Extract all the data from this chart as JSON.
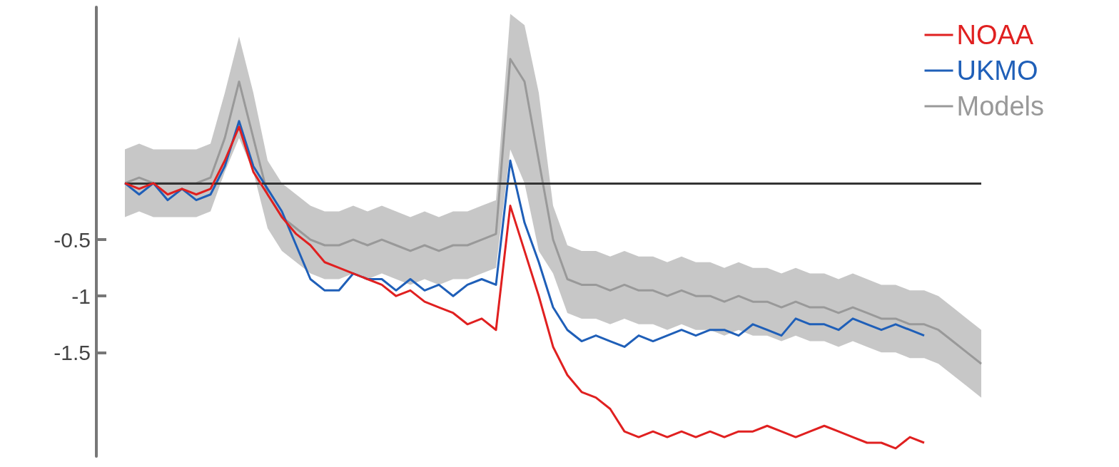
{
  "chart_data": {
    "type": "line",
    "categories": [
      null,
      null,
      null,
      null,
      null,
      null,
      null,
      null,
      null,
      null,
      null,
      null,
      null,
      null,
      null,
      null,
      null,
      null,
      null,
      null,
      null,
      null,
      null,
      null,
      null,
      null,
      null,
      null,
      null,
      null,
      null,
      null,
      null,
      null,
      null,
      null,
      null,
      null,
      null,
      null,
      null,
      null,
      null,
      null,
      null,
      null,
      null,
      null,
      null,
      null,
      null,
      null,
      null,
      null,
      null,
      null,
      null,
      null,
      null,
      null,
      null
    ],
    "series": [
      {
        "name": "NOAA",
        "color": "#e02020",
        "values": [
          0,
          -0.05,
          0,
          -0.1,
          -0.05,
          -0.1,
          -0.05,
          0.2,
          0.5,
          0.1,
          -0.1,
          -0.3,
          -0.45,
          -0.55,
          -0.7,
          -0.75,
          -0.8,
          -0.85,
          -0.9,
          -1.0,
          -0.95,
          -1.05,
          -1.1,
          -1.15,
          -1.25,
          -1.2,
          -1.3,
          -0.2,
          -0.6,
          -1.0,
          -1.45,
          -1.7,
          -1.85,
          -1.9,
          -2.0,
          -2.2,
          -2.25,
          -2.2,
          -2.25,
          -2.2,
          -2.25,
          -2.2,
          -2.25,
          -2.2,
          -2.2,
          -2.15,
          -2.2,
          -2.25,
          -2.2,
          -2.15,
          -2.2,
          -2.25,
          -2.3,
          -2.3,
          -2.35,
          -2.25,
          -2.3,
          null,
          null,
          null,
          null
        ]
      },
      {
        "name": "UKMO",
        "color": "#1f5fb8",
        "values": [
          0,
          -0.1,
          0,
          -0.15,
          -0.05,
          -0.15,
          -0.1,
          0.15,
          0.55,
          0.15,
          -0.05,
          -0.25,
          -0.55,
          -0.85,
          -0.95,
          -0.95,
          -0.8,
          -0.85,
          -0.85,
          -0.95,
          -0.85,
          -0.95,
          -0.9,
          -1.0,
          -0.9,
          -0.85,
          -0.9,
          0.2,
          -0.35,
          -0.7,
          -1.1,
          -1.3,
          -1.4,
          -1.35,
          -1.4,
          -1.45,
          -1.35,
          -1.4,
          -1.35,
          -1.3,
          -1.35,
          -1.3,
          -1.3,
          -1.35,
          -1.25,
          -1.3,
          -1.35,
          -1.2,
          -1.25,
          -1.25,
          -1.3,
          -1.2,
          -1.25,
          -1.3,
          -1.25,
          -1.3,
          -1.35,
          null,
          null,
          null,
          null
        ]
      },
      {
        "name": "Models",
        "color": "#999999",
        "values": [
          0,
          0.05,
          0,
          0,
          0,
          0,
          0.05,
          0.4,
          0.9,
          0.4,
          -0.1,
          -0.3,
          -0.4,
          -0.5,
          -0.55,
          -0.55,
          -0.5,
          -0.55,
          -0.5,
          -0.55,
          -0.6,
          -0.55,
          -0.6,
          -0.55,
          -0.55,
          -0.5,
          -0.45,
          1.1,
          0.9,
          0.2,
          -0.5,
          -0.85,
          -0.9,
          -0.9,
          -0.95,
          -0.9,
          -0.95,
          -0.95,
          -1.0,
          -0.95,
          -1.0,
          -1.0,
          -1.05,
          -1.0,
          -1.05,
          -1.05,
          -1.1,
          -1.05,
          -1.1,
          -1.1,
          -1.15,
          -1.1,
          -1.15,
          -1.2,
          -1.2,
          -1.25,
          -1.25,
          -1.3,
          -1.4,
          -1.5,
          -1.6
        ],
        "upper": [
          0.3,
          0.35,
          0.3,
          0.3,
          0.3,
          0.3,
          0.35,
          0.8,
          1.3,
          0.8,
          0.2,
          0,
          -0.1,
          -0.2,
          -0.25,
          -0.25,
          -0.2,
          -0.25,
          -0.2,
          -0.25,
          -0.3,
          -0.25,
          -0.3,
          -0.25,
          -0.25,
          -0.2,
          -0.15,
          1.5,
          1.4,
          0.8,
          -0.2,
          -0.55,
          -0.6,
          -0.6,
          -0.65,
          -0.6,
          -0.65,
          -0.65,
          -0.7,
          -0.65,
          -0.7,
          -0.7,
          -0.75,
          -0.7,
          -0.75,
          -0.75,
          -0.8,
          -0.75,
          -0.8,
          -0.8,
          -0.85,
          -0.8,
          -0.85,
          -0.9,
          -0.9,
          -0.95,
          -0.95,
          -1.0,
          -1.1,
          -1.2,
          -1.3
        ],
        "lower": [
          -0.3,
          -0.25,
          -0.3,
          -0.3,
          -0.3,
          -0.3,
          -0.25,
          0.1,
          0.4,
          0.1,
          -0.4,
          -0.6,
          -0.7,
          -0.8,
          -0.85,
          -0.85,
          -0.8,
          -0.85,
          -0.8,
          -0.85,
          -0.9,
          -0.85,
          -0.9,
          -0.85,
          -0.85,
          -0.8,
          -0.75,
          0.3,
          0.0,
          -0.6,
          -0.8,
          -1.15,
          -1.2,
          -1.2,
          -1.25,
          -1.2,
          -1.25,
          -1.25,
          -1.3,
          -1.25,
          -1.3,
          -1.3,
          -1.35,
          -1.3,
          -1.35,
          -1.35,
          -1.4,
          -1.35,
          -1.4,
          -1.4,
          -1.45,
          -1.4,
          -1.45,
          -1.5,
          -1.5,
          -1.55,
          -1.55,
          -1.6,
          -1.7,
          -1.8,
          -1.9
        ]
      }
    ],
    "ylim": [
      -2.42,
      1.56
    ],
    "yticks": [
      -0.5,
      -1,
      -1.5
    ],
    "ref_lines": [
      {
        "axis": "y",
        "value": 0,
        "color": "#333333"
      }
    ],
    "tick_labels": "y",
    "grid": false,
    "legend": "top right",
    "marker": "none",
    "line_style": "solid"
  }
}
